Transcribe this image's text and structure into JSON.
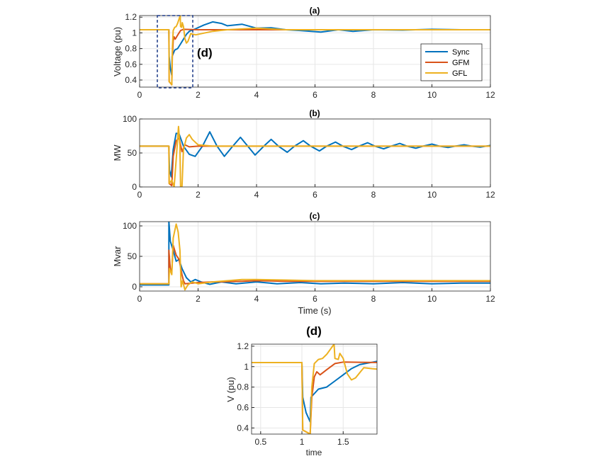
{
  "colors": {
    "Sync": "#0072BD",
    "GFM": "#D95319",
    "GFL": "#EDB120",
    "grid": "#e6e6e6",
    "inset_box": "#1f3c88"
  },
  "legend": {
    "placement": "right",
    "entries": [
      "Sync",
      "GFM",
      "GFL"
    ]
  },
  "inset_label": "(d)",
  "chart_data": [
    {
      "id": "a",
      "type": "line",
      "title": "(a)",
      "xlabel": "",
      "ylabel": "Voltage (pu)",
      "xlim": [
        0,
        12
      ],
      "ylim": [
        0.31,
        1.22
      ],
      "grid": true,
      "xticks": [
        0,
        2,
        4,
        6,
        8,
        10,
        12
      ],
      "yticks": [
        0.4,
        0.6,
        0.8,
        1,
        1.2
      ],
      "series": [
        {
          "name": "Sync",
          "points": [
            [
              0,
              1.04
            ],
            [
              1.0,
              1.04
            ],
            [
              1.01,
              0.7
            ],
            [
              1.05,
              0.55
            ],
            [
              1.1,
              0.46
            ],
            [
              1.11,
              0.7
            ],
            [
              1.2,
              0.78
            ],
            [
              1.3,
              0.8
            ],
            [
              1.4,
              0.86
            ],
            [
              1.5,
              0.92
            ],
            [
              1.6,
              0.98
            ],
            [
              1.7,
              1.02
            ],
            [
              1.8,
              1.035
            ],
            [
              1.9,
              1.05
            ],
            [
              2.2,
              1.1
            ],
            [
              2.5,
              1.14
            ],
            [
              2.8,
              1.12
            ],
            [
              3.0,
              1.09
            ],
            [
              3.5,
              1.11
            ],
            [
              4.0,
              1.06
            ],
            [
              4.5,
              1.065
            ],
            [
              5.0,
              1.04
            ],
            [
              5.5,
              1.03
            ],
            [
              6.2,
              1.01
            ],
            [
              6.8,
              1.04
            ],
            [
              7.3,
              1.02
            ],
            [
              8,
              1.04
            ],
            [
              9,
              1.035
            ],
            [
              10,
              1.045
            ],
            [
              11,
              1.04
            ],
            [
              12,
              1.04
            ]
          ]
        },
        {
          "name": "GFM",
          "points": [
            [
              0,
              1.04
            ],
            [
              1.0,
              1.04
            ],
            [
              1.01,
              0.38
            ],
            [
              1.1,
              0.34
            ],
            [
              1.12,
              0.7
            ],
            [
              1.15,
              0.9
            ],
            [
              1.18,
              0.95
            ],
            [
              1.22,
              0.92
            ],
            [
              1.3,
              0.97
            ],
            [
              1.4,
              1.03
            ],
            [
              1.5,
              1.045
            ],
            [
              2,
              1.04
            ],
            [
              12,
              1.04
            ]
          ]
        },
        {
          "name": "GFL",
          "points": [
            [
              0,
              1.04
            ],
            [
              1.0,
              1.04
            ],
            [
              1.01,
              0.38
            ],
            [
              1.08,
              0.35
            ],
            [
              1.1,
              0.34
            ],
            [
              1.12,
              0.8
            ],
            [
              1.15,
              1.03
            ],
            [
              1.2,
              1.07
            ],
            [
              1.25,
              1.08
            ],
            [
              1.3,
              1.12
            ],
            [
              1.39,
              1.22
            ],
            [
              1.4,
              1.08
            ],
            [
              1.44,
              1.07
            ],
            [
              1.46,
              1.13
            ],
            [
              1.5,
              1.08
            ],
            [
              1.55,
              0.93
            ],
            [
              1.6,
              0.87
            ],
            [
              1.65,
              0.89
            ],
            [
              1.75,
              0.99
            ],
            [
              1.85,
              0.98
            ],
            [
              1.92,
              0.975
            ],
            [
              2.5,
              1.02
            ],
            [
              3,
              1.04
            ],
            [
              4,
              1.06
            ],
            [
              5,
              1.04
            ],
            [
              12,
              1.04
            ]
          ]
        }
      ]
    },
    {
      "id": "b",
      "type": "line",
      "title": "(b)",
      "xlabel": "",
      "ylabel": "MW",
      "xlim": [
        0,
        12
      ],
      "ylim": [
        0,
        100
      ],
      "grid": true,
      "xticks": [
        0,
        2,
        4,
        6,
        8,
        10,
        12
      ],
      "yticks": [
        0,
        50,
        100
      ],
      "series": [
        {
          "name": "Sync",
          "points": [
            [
              0,
              60
            ],
            [
              1.0,
              60
            ],
            [
              1.02,
              25
            ],
            [
              1.08,
              15
            ],
            [
              1.15,
              55
            ],
            [
              1.25,
              79
            ],
            [
              1.35,
              78
            ],
            [
              1.5,
              60
            ],
            [
              1.7,
              48
            ],
            [
              1.9,
              45
            ],
            [
              2.15,
              60
            ],
            [
              2.4,
              81
            ],
            [
              2.65,
              60
            ],
            [
              2.9,
              45
            ],
            [
              3.15,
              58
            ],
            [
              3.45,
              73
            ],
            [
              3.7,
              60
            ],
            [
              3.95,
              47
            ],
            [
              4.25,
              60
            ],
            [
              4.5,
              70
            ],
            [
              4.75,
              60
            ],
            [
              5.05,
              51
            ],
            [
              5.3,
              60
            ],
            [
              5.6,
              68
            ],
            [
              5.85,
              60
            ],
            [
              6.15,
              53
            ],
            [
              6.4,
              60
            ],
            [
              6.7,
              66
            ],
            [
              6.95,
              60
            ],
            [
              7.25,
              55
            ],
            [
              7.5,
              60
            ],
            [
              7.8,
              65
            ],
            [
              8.05,
              60
            ],
            [
              8.35,
              56
            ],
            [
              8.6,
              60
            ],
            [
              8.9,
              64
            ],
            [
              9.15,
              60
            ],
            [
              9.45,
              57
            ],
            [
              9.7,
              60
            ],
            [
              10,
              63
            ],
            [
              10.25,
              60
            ],
            [
              10.55,
              58
            ],
            [
              10.8,
              60
            ],
            [
              11.1,
              62
            ],
            [
              11.35,
              60
            ],
            [
              11.65,
              58.5
            ],
            [
              12,
              61
            ]
          ]
        },
        {
          "name": "GFM",
          "points": [
            [
              0,
              60
            ],
            [
              1.0,
              60
            ],
            [
              1.01,
              5
            ],
            [
              1.1,
              2
            ],
            [
              1.15,
              45
            ],
            [
              1.25,
              68
            ],
            [
              1.35,
              72
            ],
            [
              1.45,
              52
            ],
            [
              1.55,
              62
            ],
            [
              1.7,
              59
            ],
            [
              2,
              60
            ],
            [
              12,
              60
            ]
          ]
        },
        {
          "name": "GFL",
          "points": [
            [
              0,
              60
            ],
            [
              1.0,
              60
            ],
            [
              1.01,
              5
            ],
            [
              1.1,
              10
            ],
            [
              1.18,
              0
            ],
            [
              1.25,
              40
            ],
            [
              1.33,
              89
            ],
            [
              1.38,
              60
            ],
            [
              1.4,
              0
            ],
            [
              1.45,
              0
            ],
            [
              1.5,
              55
            ],
            [
              1.6,
              72
            ],
            [
              1.7,
              77
            ],
            [
              1.8,
              70
            ],
            [
              2.0,
              62
            ],
            [
              2.5,
              60
            ],
            [
              12,
              60
            ]
          ]
        }
      ]
    },
    {
      "id": "c",
      "type": "line",
      "title": "(c)",
      "xlabel": "Time (s)",
      "ylabel": "Mvar",
      "xlim": [
        0,
        12
      ],
      "ylim": [
        -7,
        107
      ],
      "grid": true,
      "xticks": [
        0,
        2,
        4,
        6,
        8,
        10,
        12
      ],
      "yticks": [
        0,
        50,
        100
      ],
      "series": [
        {
          "name": "Sync",
          "points": [
            [
              0,
              3
            ],
            [
              1.0,
              3
            ],
            [
              1.0,
              108
            ],
            [
              1.05,
              75
            ],
            [
              1.15,
              60
            ],
            [
              1.25,
              42
            ],
            [
              1.35,
              45
            ],
            [
              1.45,
              30
            ],
            [
              1.6,
              15
            ],
            [
              1.75,
              8
            ],
            [
              1.9,
              12
            ],
            [
              2.1,
              8
            ],
            [
              2.4,
              4
            ],
            [
              2.8,
              8
            ],
            [
              3.3,
              5
            ],
            [
              4,
              8
            ],
            [
              4.7,
              5
            ],
            [
              5.5,
              7
            ],
            [
              6.2,
              5
            ],
            [
              7,
              6
            ],
            [
              8,
              5
            ],
            [
              9,
              7
            ],
            [
              10,
              5
            ],
            [
              11,
              6
            ],
            [
              12,
              6
            ]
          ]
        },
        {
          "name": "GFM",
          "points": [
            [
              0,
              5
            ],
            [
              1.0,
              5
            ],
            [
              1.0,
              60
            ],
            [
              1.05,
              30
            ],
            [
              1.1,
              25
            ],
            [
              1.15,
              68
            ],
            [
              1.25,
              52
            ],
            [
              1.35,
              45
            ],
            [
              1.45,
              20
            ],
            [
              1.5,
              10
            ],
            [
              1.55,
              5
            ],
            [
              2,
              7
            ],
            [
              2.5,
              8
            ],
            [
              3.5,
              9
            ],
            [
              4,
              10
            ],
            [
              5,
              9
            ],
            [
              12,
              9
            ]
          ]
        },
        {
          "name": "GFL",
          "points": [
            [
              0,
              5
            ],
            [
              1.0,
              5
            ],
            [
              1.02,
              30
            ],
            [
              1.1,
              20
            ],
            [
              1.15,
              80
            ],
            [
              1.25,
              103
            ],
            [
              1.32,
              90
            ],
            [
              1.38,
              60
            ],
            [
              1.42,
              0
            ],
            [
              1.47,
              10
            ],
            [
              1.55,
              -5
            ],
            [
              1.65,
              3
            ],
            [
              1.8,
              8
            ],
            [
              2.0,
              5
            ],
            [
              2.5,
              8
            ],
            [
              3.5,
              12
            ],
            [
              4,
              12
            ],
            [
              5,
              11
            ],
            [
              6,
              10
            ],
            [
              12,
              10
            ]
          ]
        }
      ]
    },
    {
      "id": "d",
      "type": "line",
      "title": "(d)",
      "xlabel": "time",
      "ylabel": "V (pu)",
      "xlim": [
        0.39,
        1.91
      ],
      "ylim": [
        0.34,
        1.22
      ],
      "grid": true,
      "xticks": [
        0.5,
        1,
        1.5
      ],
      "yticks": [
        0.4,
        0.6,
        0.8,
        1,
        1.2
      ],
      "series_ref": "a"
    }
  ]
}
